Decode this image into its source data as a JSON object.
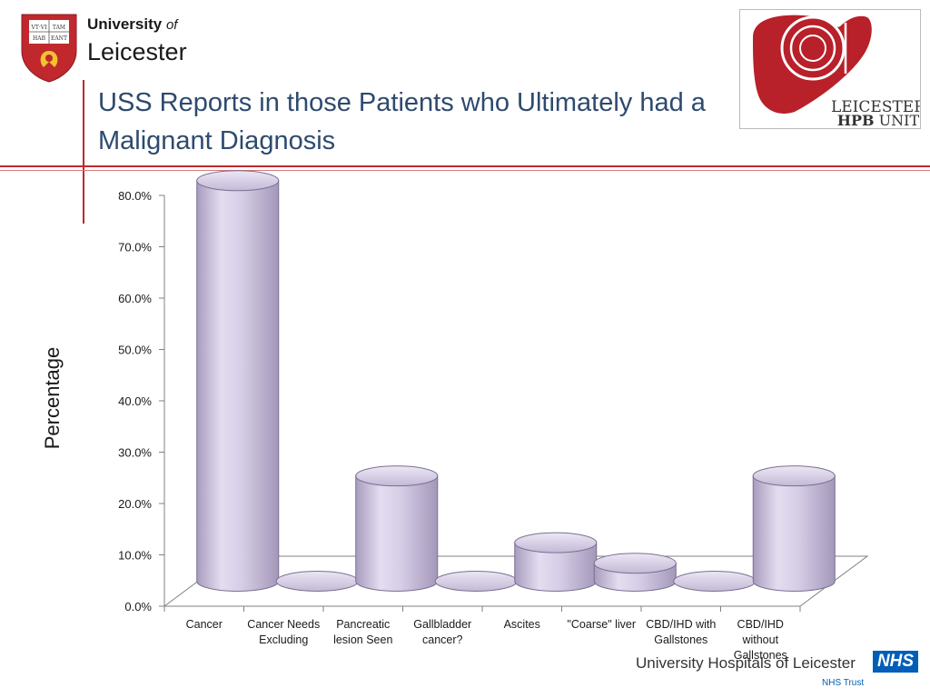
{
  "header": {
    "university_line1": "University",
    "university_of": "of",
    "university_line2": "Leicester",
    "crest_text": [
      "VT·VI",
      "TAM",
      "HAB",
      "EANT"
    ],
    "title": "USS Reports in those Patients who Ultimately had a Malignant Diagnosis",
    "hpb_logo": {
      "line1": "LEICESTER",
      "line2a": "HPB",
      "line2b": " UNIT"
    }
  },
  "footer": {
    "hospital_name": "University Hospitals of Leicester",
    "nhs_label": "NHS",
    "nhs_trust": "NHS Trust"
  },
  "colors": {
    "accent_red": "#c0282d",
    "bar_fill": "#d8d0e8",
    "title_blue": "#2e4a6e",
    "nhs_blue": "#005eb8"
  },
  "chart_data": {
    "type": "bar",
    "style": "3d-cylinder",
    "title": "",
    "xlabel": "",
    "ylabel": "Percentage",
    "ylim": [
      0,
      80
    ],
    "yticks": [
      "0.0%",
      "10.0%",
      "20.0%",
      "30.0%",
      "40.0%",
      "50.0%",
      "60.0%",
      "70.0%",
      "80.0%"
    ],
    "categories": [
      [
        "Cancer"
      ],
      [
        "Cancer Needs",
        "Excluding"
      ],
      [
        "Pancreatic",
        "lesion Seen"
      ],
      [
        "Gallbladder",
        "cancer?"
      ],
      [
        "Ascites"
      ],
      [
        "\"Coarse\" liver"
      ],
      [
        "CBD/IHD with",
        "Gallstones"
      ],
      [
        "CBD/IHD",
        "without",
        "Gallstones"
      ]
    ],
    "values": [
      78.0,
      0.0,
      20.5,
      0.0,
      7.5,
      3.5,
      0.0,
      20.5
    ],
    "grid": false,
    "legend": "none"
  }
}
